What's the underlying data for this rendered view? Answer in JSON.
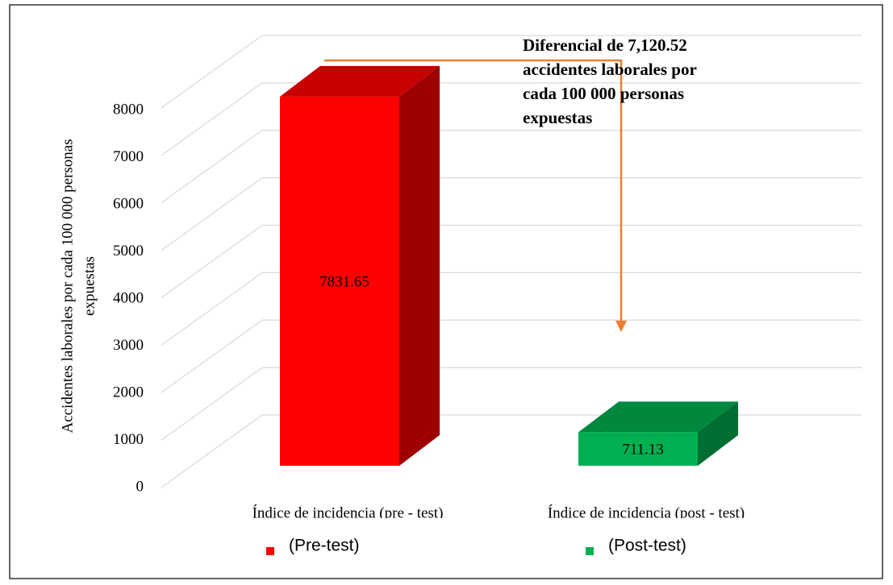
{
  "chart_data": {
    "type": "bar3d",
    "y_label": [
      "Accidentes laborales por cada 100 000 personas",
      "expuestas"
    ],
    "categories": [
      "Índice de incidencia (pre - test)",
      "Índice de incidencia (post - test)"
    ],
    "values": [
      7831.65,
      711.13
    ],
    "colors": [
      "#ff0000",
      "#00b050"
    ],
    "legend": [
      "(Pre-test)",
      "(Post-test)"
    ],
    "ylim": [
      0,
      8000
    ],
    "yticks": [
      0,
      1000,
      2000,
      3000,
      4000,
      5000,
      6000,
      7000,
      8000
    ],
    "grid": true,
    "annotation": [
      "Diferencial de 7,120.52",
      "accidentes laborales por",
      "cada 100 000 personas",
      "expuestas"
    ]
  }
}
